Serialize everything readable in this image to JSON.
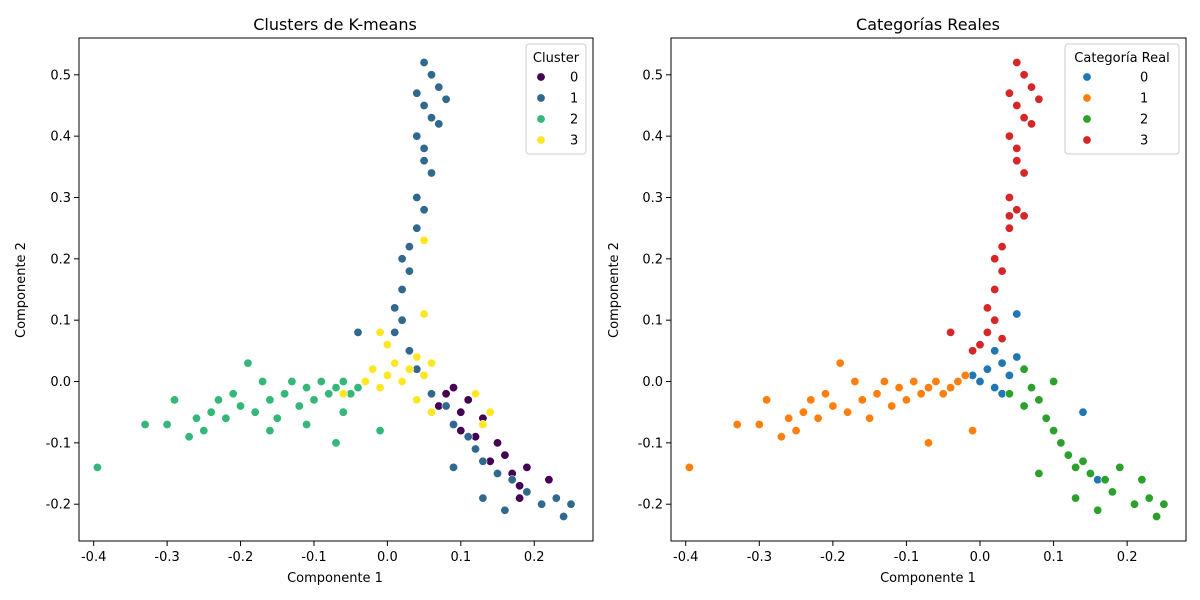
{
  "chart_data": [
    {
      "type": "scatter",
      "title": "Clusters de K-means",
      "xlabel": "Componente 1",
      "ylabel": "Componente 2",
      "xlim": [
        -0.42,
        0.28
      ],
      "ylim": [
        -0.26,
        0.56
      ],
      "xticks": [
        -0.4,
        -0.3,
        -0.2,
        -0.1,
        0.0,
        0.1,
        0.2
      ],
      "yticks": [
        -0.2,
        -0.1,
        0.0,
        0.1,
        0.2,
        0.3,
        0.4,
        0.5
      ],
      "legend": {
        "title": "Cluster",
        "position": "top-right",
        "entries": [
          {
            "label": "0",
            "color": "#440154"
          },
          {
            "label": "1",
            "color": "#31688e"
          },
          {
            "label": "2",
            "color": "#35b779"
          },
          {
            "label": "3",
            "color": "#fde725"
          }
        ]
      },
      "grid": false,
      "series": [
        {
          "name": "0",
          "color": "#440154",
          "points": [
            [
              0.09,
              -0.01
            ],
            [
              0.1,
              -0.05
            ],
            [
              0.12,
              -0.09
            ],
            [
              0.14,
              -0.13
            ],
            [
              0.17,
              -0.15
            ],
            [
              0.19,
              -0.14
            ],
            [
              0.22,
              -0.16
            ],
            [
              0.18,
              -0.19
            ],
            [
              0.08,
              -0.02
            ],
            [
              0.11,
              -0.03
            ],
            [
              0.13,
              -0.06
            ],
            [
              0.15,
              -0.1
            ],
            [
              0.16,
              -0.12
            ],
            [
              0.18,
              -0.17
            ],
            [
              0.07,
              -0.04
            ],
            [
              0.1,
              -0.08
            ]
          ]
        },
        {
          "name": "1",
          "color": "#31688e",
          "points": [
            [
              0.05,
              0.52
            ],
            [
              0.06,
              0.5
            ],
            [
              0.07,
              0.48
            ],
            [
              0.08,
              0.46
            ],
            [
              0.04,
              0.47
            ],
            [
              0.05,
              0.45
            ],
            [
              0.06,
              0.43
            ],
            [
              0.07,
              0.42
            ],
            [
              0.04,
              0.4
            ],
            [
              0.05,
              0.38
            ],
            [
              0.05,
              0.36
            ],
            [
              0.06,
              0.34
            ],
            [
              0.04,
              0.3
            ],
            [
              0.05,
              0.28
            ],
            [
              0.04,
              0.25
            ],
            [
              0.03,
              0.22
            ],
            [
              0.02,
              0.2
            ],
            [
              0.03,
              0.18
            ],
            [
              0.02,
              0.15
            ],
            [
              0.01,
              0.12
            ],
            [
              0.02,
              0.1
            ],
            [
              0.01,
              0.08
            ],
            [
              0.0,
              0.06
            ],
            [
              0.03,
              0.05
            ],
            [
              0.04,
              0.02
            ],
            [
              0.06,
              -0.02
            ],
            [
              0.08,
              -0.04
            ],
            [
              0.09,
              -0.07
            ],
            [
              0.11,
              -0.09
            ],
            [
              0.12,
              -0.11
            ],
            [
              0.13,
              -0.13
            ],
            [
              0.15,
              -0.15
            ],
            [
              0.17,
              -0.16
            ],
            [
              0.19,
              -0.18
            ],
            [
              0.21,
              -0.2
            ],
            [
              0.23,
              -0.19
            ],
            [
              0.25,
              -0.2
            ],
            [
              0.24,
              -0.22
            ],
            [
              0.16,
              -0.21
            ],
            [
              0.13,
              -0.19
            ],
            [
              0.09,
              -0.14
            ],
            [
              -0.04,
              0.08
            ]
          ]
        },
        {
          "name": "2",
          "color": "#35b779",
          "points": [
            [
              -0.395,
              -0.14
            ],
            [
              -0.33,
              -0.07
            ],
            [
              -0.3,
              -0.07
            ],
            [
              -0.29,
              -0.03
            ],
            [
              -0.27,
              -0.09
            ],
            [
              -0.26,
              -0.06
            ],
            [
              -0.25,
              -0.08
            ],
            [
              -0.24,
              -0.05
            ],
            [
              -0.23,
              -0.03
            ],
            [
              -0.22,
              -0.06
            ],
            [
              -0.21,
              -0.02
            ],
            [
              -0.2,
              -0.04
            ],
            [
              -0.19,
              0.03
            ],
            [
              -0.18,
              -0.05
            ],
            [
              -0.17,
              0.0
            ],
            [
              -0.16,
              -0.03
            ],
            [
              -0.15,
              -0.06
            ],
            [
              -0.14,
              -0.02
            ],
            [
              -0.13,
              0.0
            ],
            [
              -0.12,
              -0.04
            ],
            [
              -0.11,
              -0.01
            ],
            [
              -0.1,
              -0.03
            ],
            [
              -0.09,
              0.0
            ],
            [
              -0.08,
              -0.02
            ],
            [
              -0.07,
              -0.01
            ],
            [
              -0.06,
              0.0
            ],
            [
              -0.05,
              -0.02
            ],
            [
              -0.04,
              -0.01
            ],
            [
              -0.07,
              -0.1
            ],
            [
              -0.01,
              -0.08
            ],
            [
              -0.06,
              -0.05
            ],
            [
              -0.11,
              -0.07
            ],
            [
              -0.16,
              -0.08
            ]
          ]
        },
        {
          "name": "3",
          "color": "#fde725",
          "points": [
            [
              -0.03,
              0.0
            ],
            [
              -0.02,
              0.02
            ],
            [
              -0.01,
              -0.01
            ],
            [
              0.0,
              0.01
            ],
            [
              0.01,
              0.03
            ],
            [
              0.02,
              0.0
            ],
            [
              0.03,
              0.02
            ],
            [
              0.04,
              0.04
            ],
            [
              0.05,
              0.01
            ],
            [
              0.06,
              0.03
            ],
            [
              0.0,
              0.06
            ],
            [
              -0.01,
              0.08
            ],
            [
              0.05,
              0.11
            ],
            [
              0.05,
              0.23
            ],
            [
              0.04,
              -0.03
            ],
            [
              0.06,
              -0.05
            ],
            [
              0.12,
              -0.02
            ],
            [
              0.13,
              -0.07
            ],
            [
              0.14,
              -0.05
            ],
            [
              -0.06,
              -0.02
            ]
          ]
        }
      ]
    },
    {
      "type": "scatter",
      "title": "Categorías Reales",
      "xlabel": "Componente 1",
      "ylabel": "Componente 2",
      "xlim": [
        -0.42,
        0.28
      ],
      "ylim": [
        -0.26,
        0.56
      ],
      "xticks": [
        -0.4,
        -0.3,
        -0.2,
        -0.1,
        0.0,
        0.1,
        0.2
      ],
      "yticks": [
        -0.2,
        -0.1,
        0.0,
        0.1,
        0.2,
        0.3,
        0.4,
        0.5
      ],
      "legend": {
        "title": "Categoría Real",
        "position": "top-right",
        "entries": [
          {
            "label": "0",
            "color": "#1f77b4"
          },
          {
            "label": "1",
            "color": "#ff7f0e"
          },
          {
            "label": "2",
            "color": "#2ca02c"
          },
          {
            "label": "3",
            "color": "#d62728"
          }
        ]
      },
      "grid": false,
      "series": [
        {
          "name": "0",
          "color": "#1f77b4",
          "points": [
            [
              0.0,
              0.0
            ],
            [
              0.01,
              0.02
            ],
            [
              0.02,
              -0.01
            ],
            [
              0.03,
              0.03
            ],
            [
              0.04,
              0.01
            ],
            [
              0.05,
              0.04
            ],
            [
              0.02,
              0.05
            ],
            [
              -0.01,
              0.01
            ],
            [
              0.03,
              -0.02
            ],
            [
              0.05,
              0.11
            ],
            [
              0.16,
              -0.16
            ],
            [
              0.14,
              -0.05
            ]
          ]
        },
        {
          "name": "1",
          "color": "#ff7f0e",
          "points": [
            [
              -0.395,
              -0.14
            ],
            [
              -0.33,
              -0.07
            ],
            [
              -0.3,
              -0.07
            ],
            [
              -0.29,
              -0.03
            ],
            [
              -0.27,
              -0.09
            ],
            [
              -0.26,
              -0.06
            ],
            [
              -0.25,
              -0.08
            ],
            [
              -0.24,
              -0.05
            ],
            [
              -0.23,
              -0.03
            ],
            [
              -0.22,
              -0.06
            ],
            [
              -0.21,
              -0.02
            ],
            [
              -0.2,
              -0.04
            ],
            [
              -0.19,
              0.03
            ],
            [
              -0.18,
              -0.05
            ],
            [
              -0.17,
              0.0
            ],
            [
              -0.16,
              -0.03
            ],
            [
              -0.15,
              -0.06
            ],
            [
              -0.14,
              -0.02
            ],
            [
              -0.13,
              0.0
            ],
            [
              -0.12,
              -0.04
            ],
            [
              -0.11,
              -0.01
            ],
            [
              -0.1,
              -0.03
            ],
            [
              -0.09,
              0.0
            ],
            [
              -0.08,
              -0.02
            ],
            [
              -0.07,
              -0.01
            ],
            [
              -0.06,
              0.0
            ],
            [
              -0.05,
              -0.02
            ],
            [
              -0.04,
              -0.01
            ],
            [
              -0.07,
              -0.1
            ],
            [
              -0.01,
              -0.08
            ],
            [
              -0.03,
              0.0
            ],
            [
              -0.02,
              0.01
            ]
          ]
        },
        {
          "name": "2",
          "color": "#2ca02c",
          "points": [
            [
              0.04,
              -0.02
            ],
            [
              0.06,
              -0.04
            ],
            [
              0.08,
              -0.03
            ],
            [
              0.09,
              -0.06
            ],
            [
              0.1,
              -0.08
            ],
            [
              0.11,
              -0.1
            ],
            [
              0.12,
              -0.12
            ],
            [
              0.13,
              -0.14
            ],
            [
              0.14,
              -0.13
            ],
            [
              0.15,
              -0.15
            ],
            [
              0.17,
              -0.16
            ],
            [
              0.18,
              -0.18
            ],
            [
              0.19,
              -0.14
            ],
            [
              0.21,
              -0.2
            ],
            [
              0.22,
              -0.16
            ],
            [
              0.23,
              -0.19
            ],
            [
              0.24,
              -0.22
            ],
            [
              0.25,
              -0.2
            ],
            [
              0.16,
              -0.21
            ],
            [
              0.13,
              -0.19
            ],
            [
              0.08,
              -0.15
            ],
            [
              0.07,
              -0.01
            ],
            [
              0.1,
              0.0
            ],
            [
              0.06,
              0.02
            ]
          ]
        },
        {
          "name": "3",
          "color": "#d62728",
          "points": [
            [
              0.05,
              0.52
            ],
            [
              0.06,
              0.5
            ],
            [
              0.07,
              0.48
            ],
            [
              0.08,
              0.46
            ],
            [
              0.04,
              0.47
            ],
            [
              0.05,
              0.45
            ],
            [
              0.06,
              0.43
            ],
            [
              0.07,
              0.42
            ],
            [
              0.04,
              0.4
            ],
            [
              0.05,
              0.38
            ],
            [
              0.05,
              0.36
            ],
            [
              0.06,
              0.34
            ],
            [
              0.04,
              0.3
            ],
            [
              0.05,
              0.28
            ],
            [
              0.04,
              0.25
            ],
            [
              0.03,
              0.22
            ],
            [
              0.02,
              0.2
            ],
            [
              0.03,
              0.18
            ],
            [
              0.02,
              0.15
            ],
            [
              0.01,
              0.12
            ],
            [
              0.02,
              0.1
            ],
            [
              0.01,
              0.08
            ],
            [
              0.0,
              0.06
            ],
            [
              0.03,
              0.07
            ],
            [
              -0.01,
              0.05
            ],
            [
              -0.04,
              0.08
            ],
            [
              0.04,
              0.27
            ],
            [
              0.06,
              0.27
            ]
          ]
        }
      ]
    }
  ]
}
